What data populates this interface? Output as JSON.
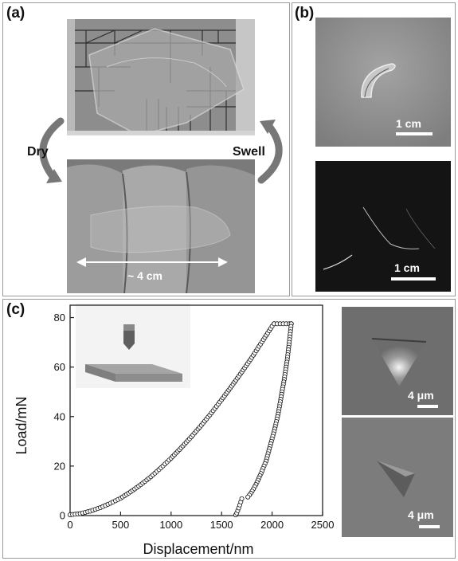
{
  "panels": {
    "a": {
      "label": "(a)",
      "dry_label": "Dry",
      "swell_label": "Swell",
      "size_label": "~ 4 cm"
    },
    "b": {
      "label": "(b)",
      "scale_top": "1 cm",
      "scale_bottom": "1 cm"
    },
    "c": {
      "label": "(c)",
      "scale_top": "4 μm",
      "scale_bottom": "4 μm"
    }
  },
  "chart_data": {
    "type": "scatter",
    "xlabel": "Displacement/nm",
    "ylabel": "Load/mN",
    "xlim": [
      0,
      2500
    ],
    "ylim": [
      0,
      85
    ],
    "xticks": [
      0,
      500,
      1000,
      1500,
      2000,
      2500
    ],
    "yticks": [
      0,
      20,
      40,
      60,
      80
    ],
    "grid": false,
    "marker": "open-circle",
    "series": [
      {
        "name": "",
        "segment": "loading",
        "x": [
          0,
          100,
          200,
          300,
          400,
          500,
          600,
          700,
          800,
          900,
          1000,
          1100,
          1200,
          1300,
          1400,
          1500,
          1600,
          1700,
          1800,
          1900,
          2000,
          2020
        ],
        "y": [
          0.3,
          0.8,
          1.8,
          3.2,
          5.0,
          7.0,
          9.6,
          12.5,
          15.7,
          19.3,
          23.2,
          27.4,
          31.8,
          36.5,
          41.5,
          46.8,
          52.3,
          58.0,
          63.9,
          70.2,
          76.5,
          77.5
        ]
      },
      {
        "name": "",
        "segment": "hold",
        "x": [
          2020,
          2050,
          2080,
          2110,
          2140,
          2170,
          2190
        ],
        "y": [
          77.5,
          77.5,
          77.5,
          77.5,
          77.5,
          77.5,
          77.5
        ]
      },
      {
        "name": "",
        "segment": "unloading",
        "x": [
          2190,
          2170,
          2150,
          2120,
          2090,
          2060,
          2020,
          1980,
          1940,
          1890,
          1840,
          1790,
          1760
        ],
        "y": [
          77.5,
          70,
          63,
          55,
          48,
          41,
          34,
          28,
          22,
          17,
          12.5,
          9,
          7.5
        ]
      },
      {
        "name": "",
        "segment": "final",
        "x": [
          1640,
          1650,
          1660,
          1670,
          1680,
          1690,
          1700
        ],
        "y": [
          0.3,
          1.0,
          2.0,
          3.1,
          4.3,
          5.5,
          6.8
        ]
      }
    ]
  }
}
